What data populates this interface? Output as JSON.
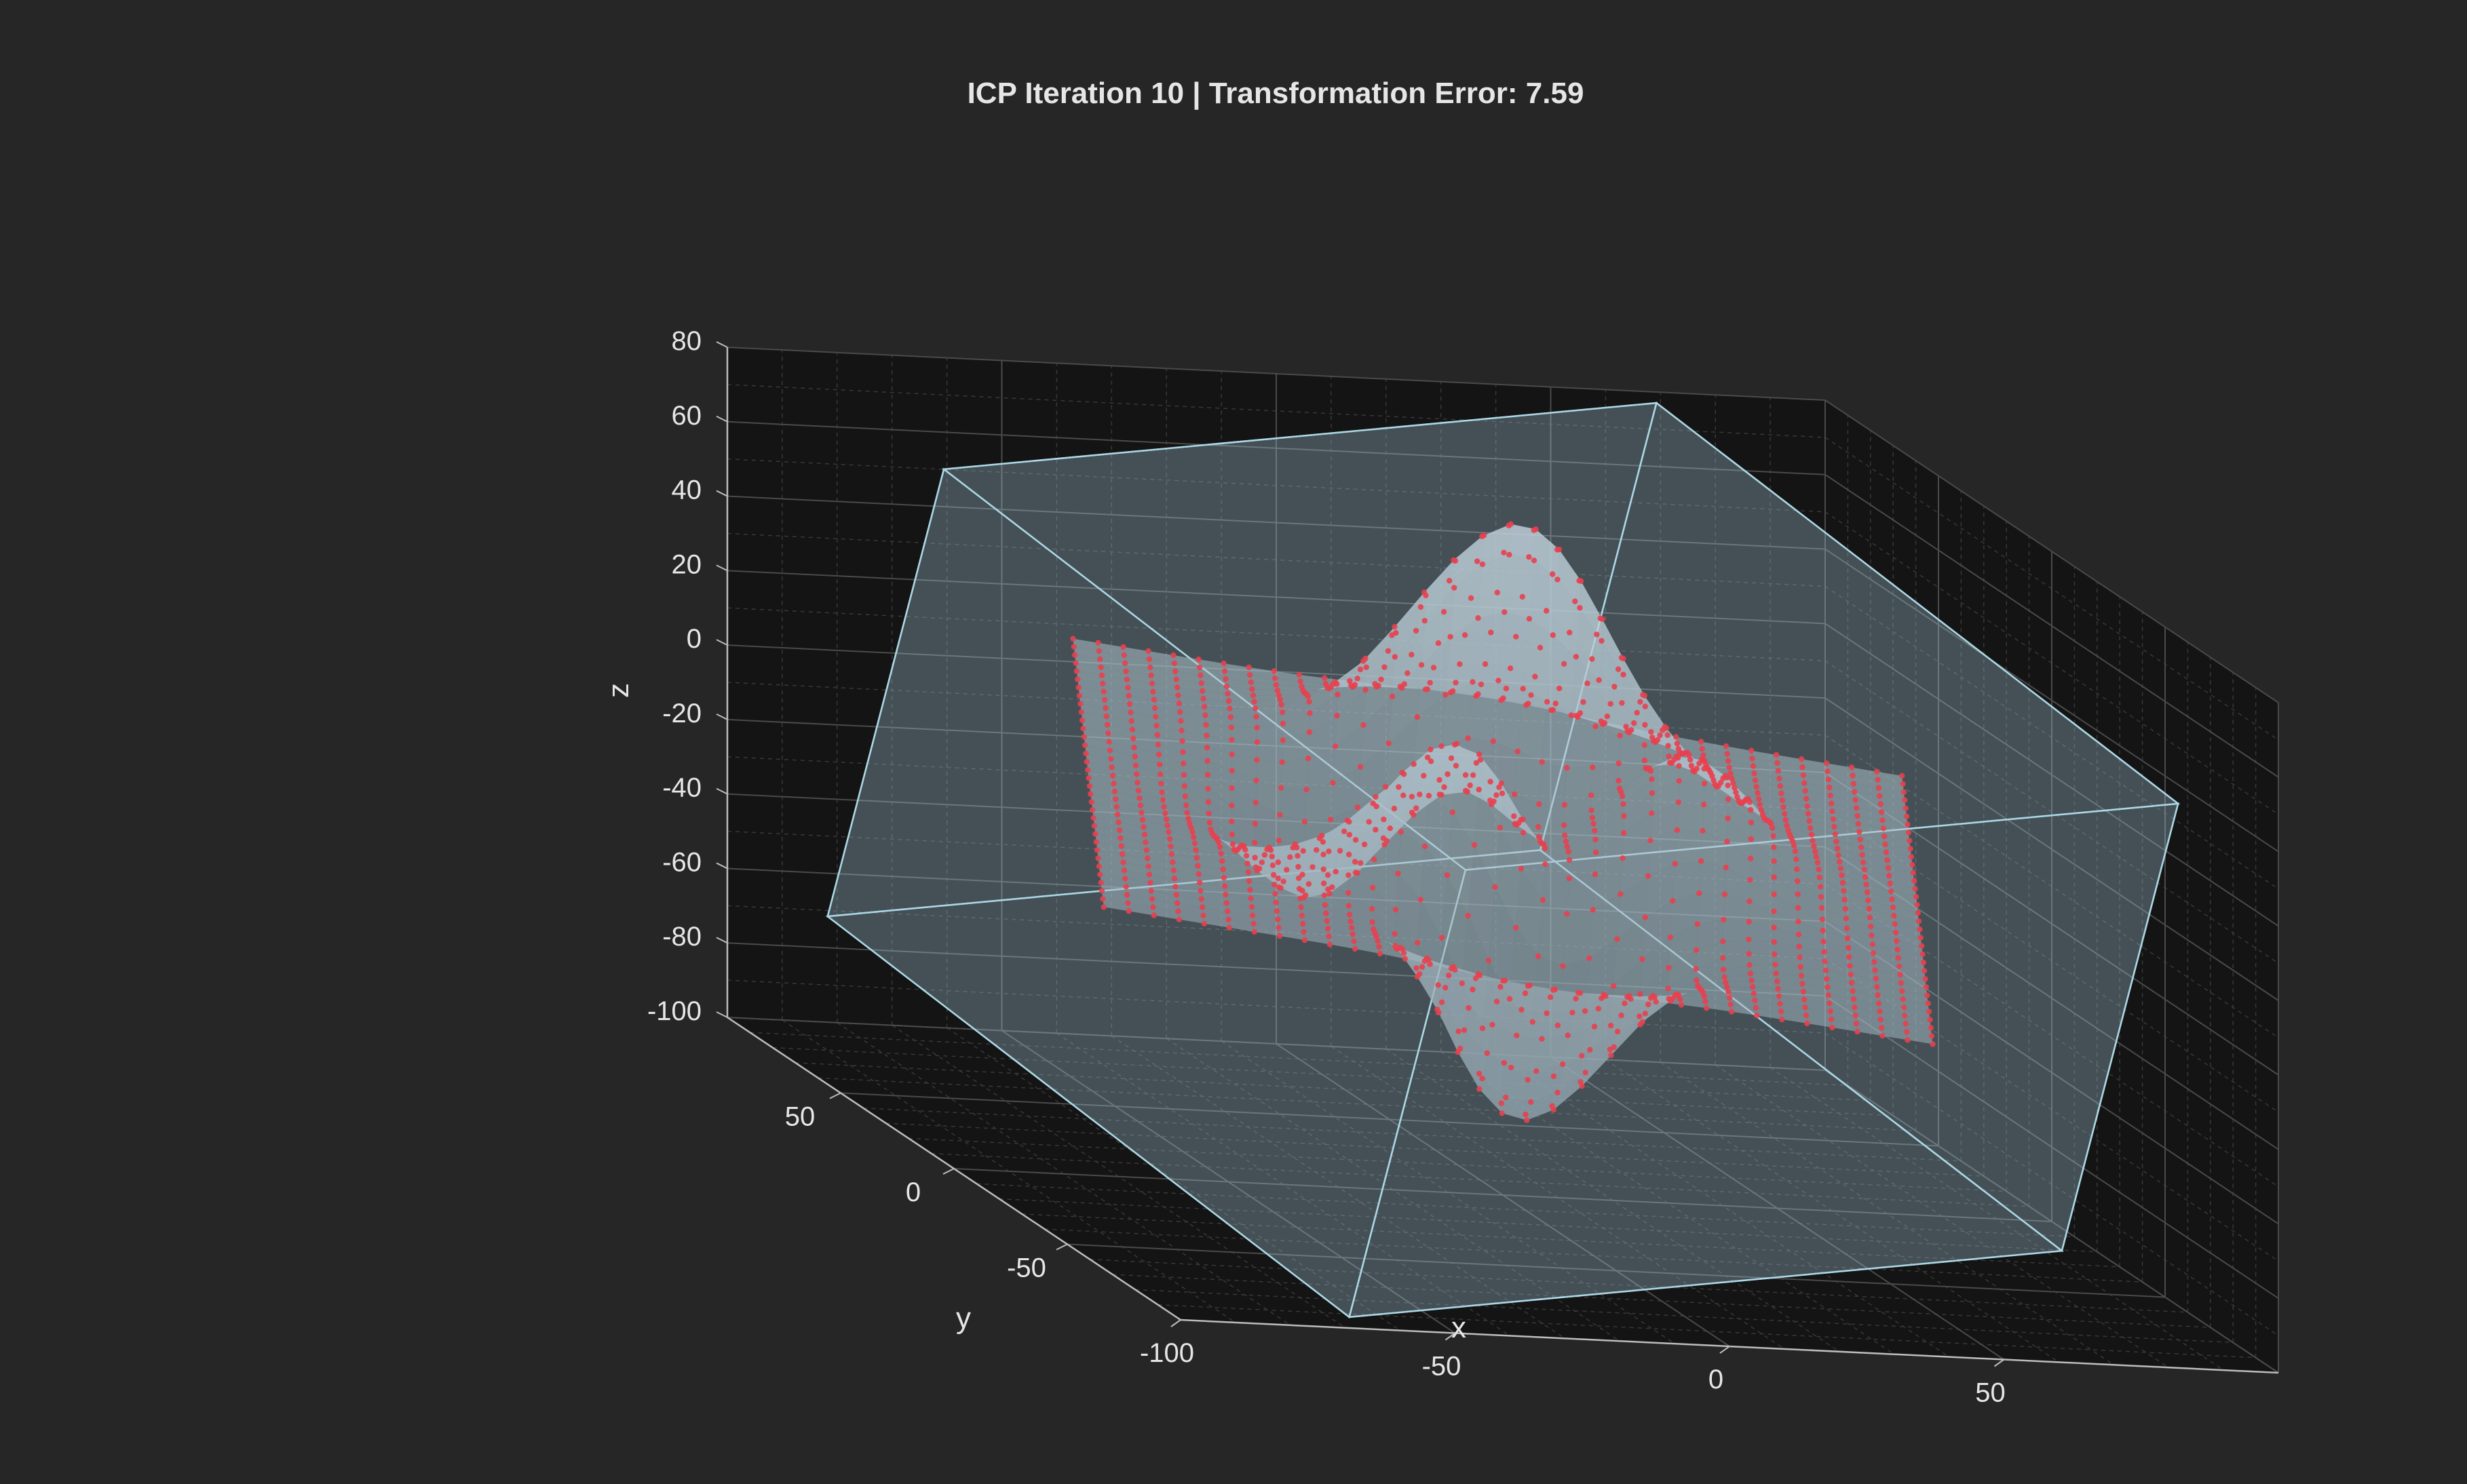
{
  "figure": {
    "background": "#262626",
    "pane_color": "#141414",
    "grid_color": "#4a4a4a",
    "minor_grid_color": "#383838",
    "text_color": "#e6e6e6"
  },
  "chart_data": {
    "type": "scatter",
    "subtype": "3d-scatter-with-surface",
    "title": "ICP Iteration 10 | Transformation Error: 7.59",
    "xlabel": "x",
    "ylabel": "y",
    "zlabel": "z",
    "xlim": [
      -100,
      100
    ],
    "ylim": [
      -100,
      100
    ],
    "zlim": [
      -100,
      80
    ],
    "x_ticks": [
      -100,
      -50,
      0,
      50
    ],
    "y_ticks": [
      -50,
      0,
      50
    ],
    "z_ticks": [
      -100,
      -80,
      -60,
      -40,
      -20,
      0,
      20,
      40,
      60,
      80
    ],
    "grid": true,
    "minor_grid": true,
    "view": {
      "azimuth": -37.5,
      "elevation": 30
    },
    "series": [
      {
        "kind": "box",
        "color": "#add8e6",
        "alpha": 0.55,
        "center": [
          0,
          0,
          -10
        ],
        "half_extent": [
          75,
          75,
          75
        ],
        "rotation_deg": {
          "z": 15,
          "x": 20
        }
      },
      {
        "kind": "surface-points",
        "color": "#e8404f",
        "surface_color": "#c0ccd4",
        "function": "peaks",
        "grid": 34,
        "range": [
          -70,
          70
        ],
        "z_scale": 9,
        "z_offset": -5
      }
    ]
  }
}
